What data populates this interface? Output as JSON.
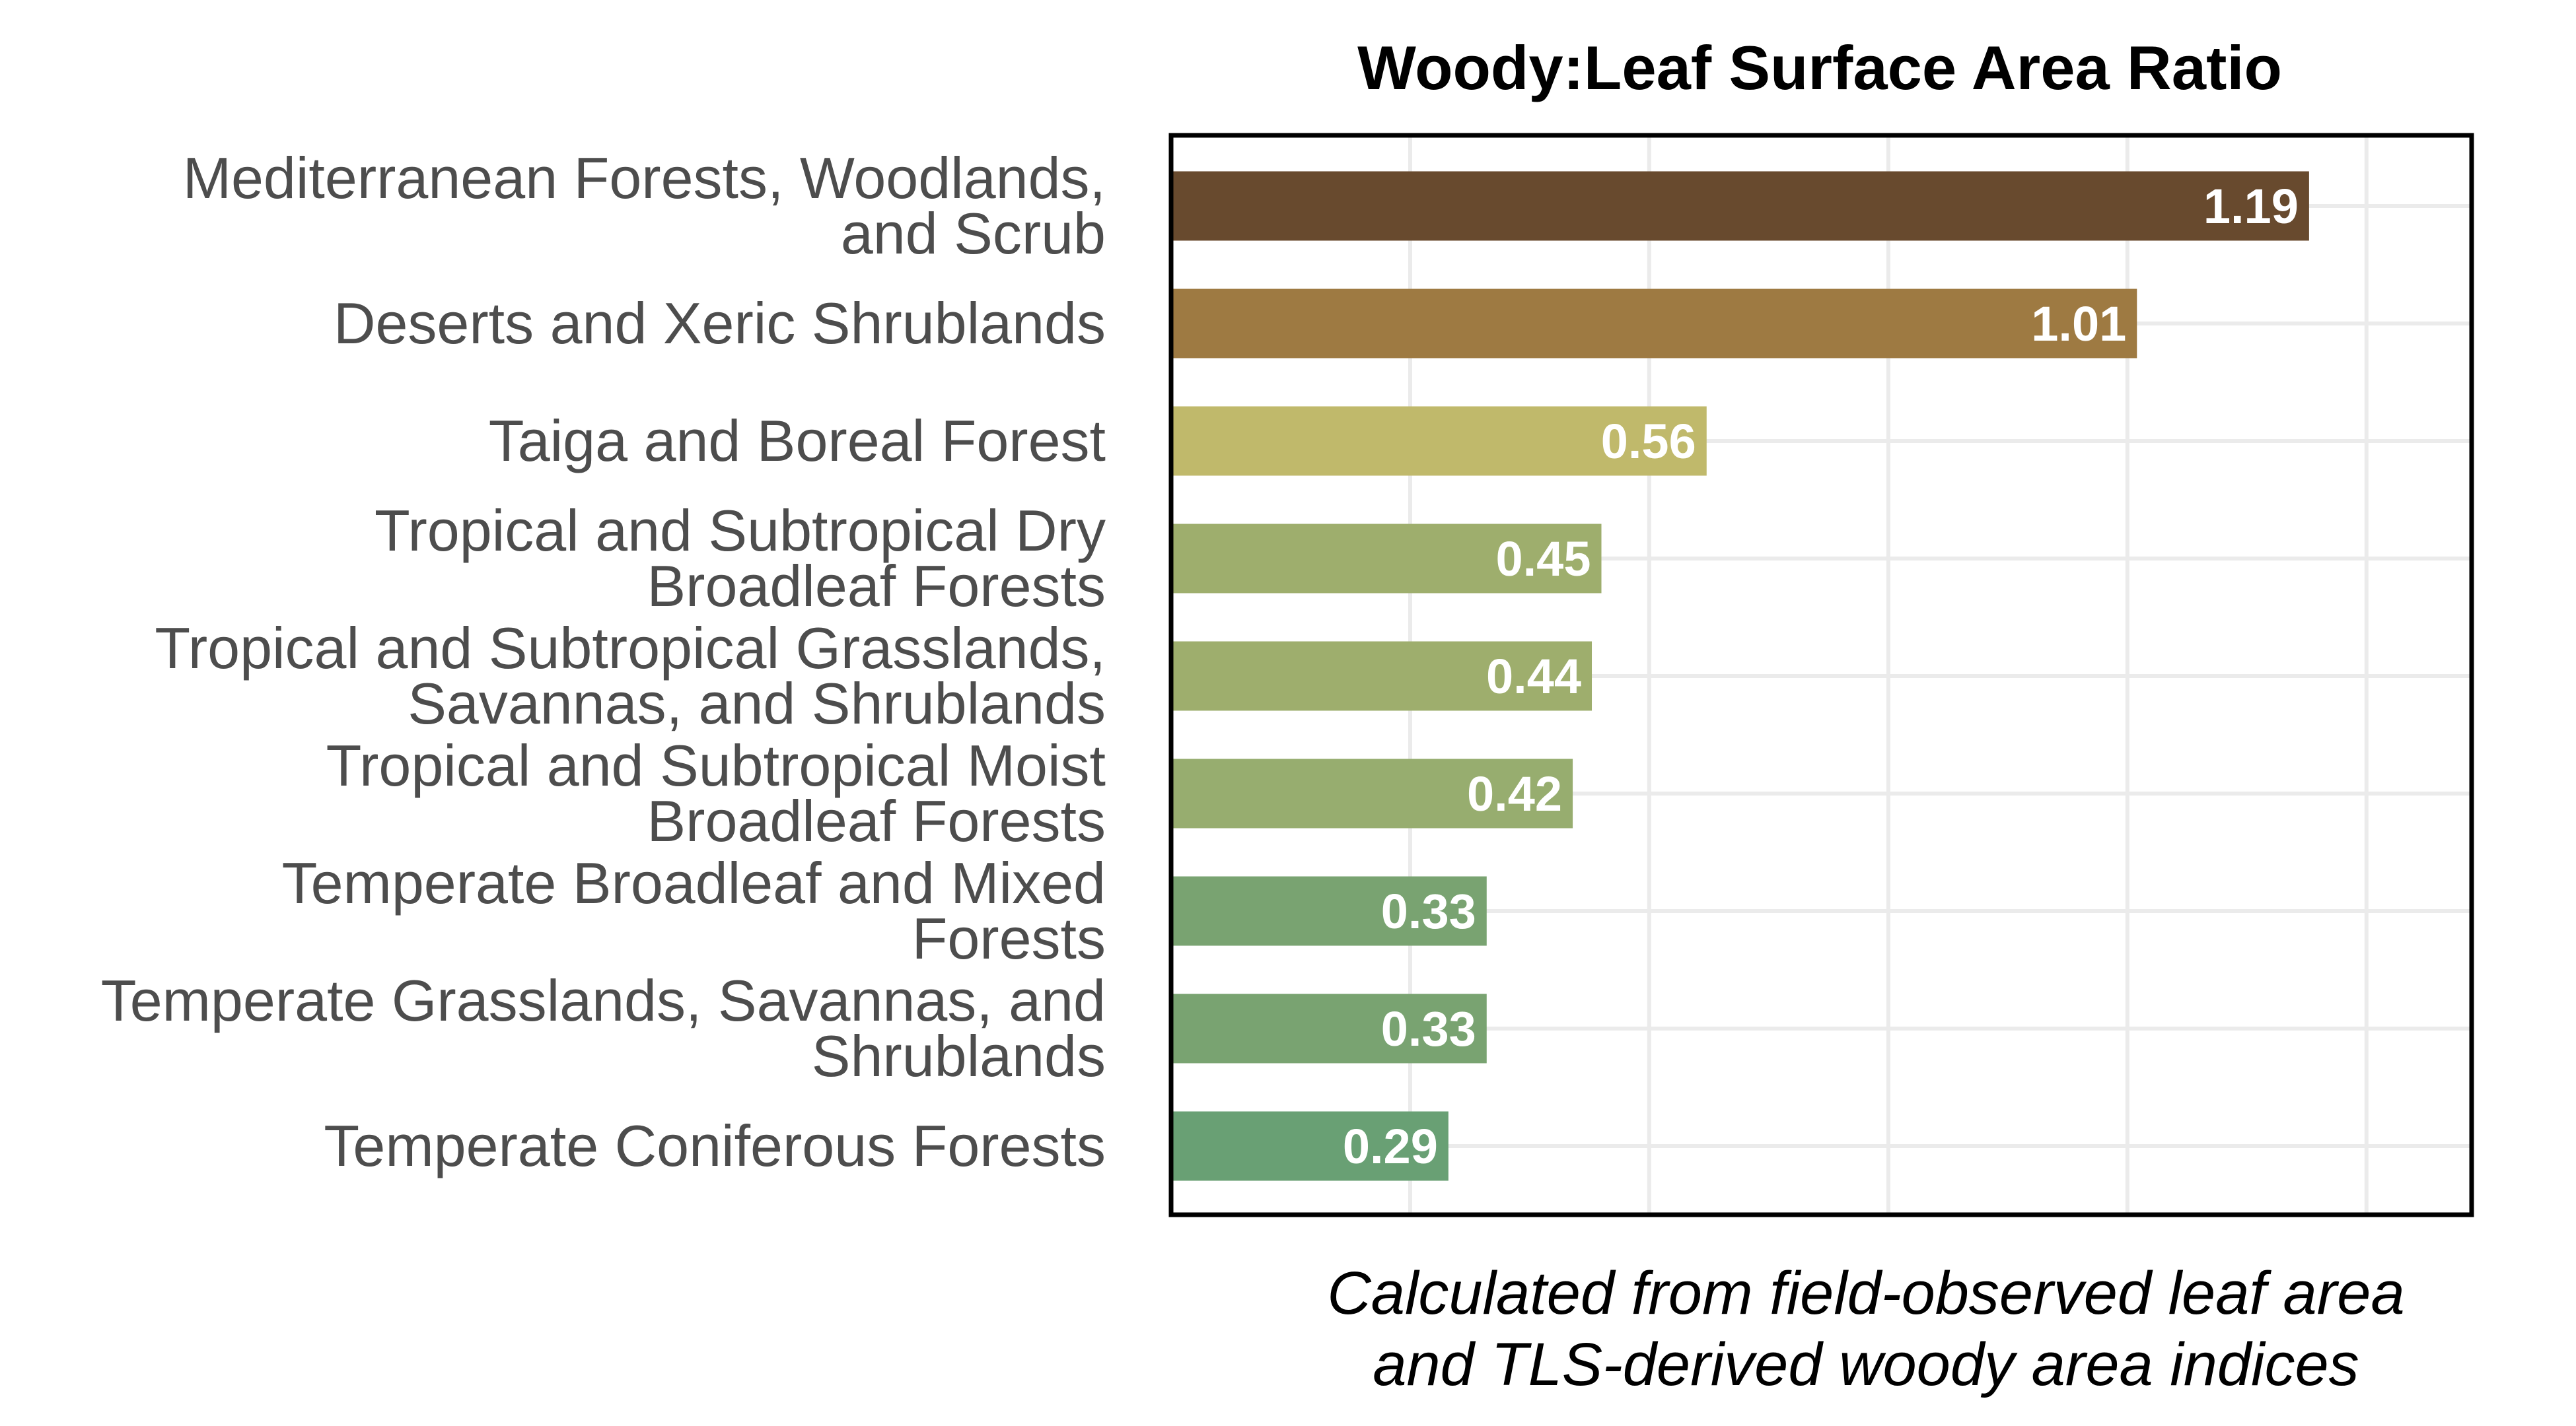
{
  "chart_data": {
    "type": "bar",
    "orientation": "horizontal",
    "title": "Woody:Leaf Surface Area Ratio",
    "xlabel": [
      "Calculated from field-observed leaf area",
      "and TLS-derived woody area indices"
    ],
    "ylabel": "",
    "xlim": [
      0,
      1.36
    ],
    "grid": true,
    "legend": "none",
    "categories": [
      [
        "Mediterranean Forests, Woodlands,",
        "and Scrub"
      ],
      [
        "Deserts and Xeric Shrublands"
      ],
      [
        "Taiga and Boreal Forest"
      ],
      [
        "Tropical and Subtropical Dry",
        "Broadleaf Forests"
      ],
      [
        "Tropical and Subtropical Grasslands,",
        "Savannas, and Shrublands"
      ],
      [
        "Tropical and Subtropical Moist",
        "Broadleaf Forests"
      ],
      [
        "Temperate Broadleaf and Mixed",
        "Forests"
      ],
      [
        "Temperate Grasslands, Savannas, and",
        "Shrublands"
      ],
      [
        "Temperate Coniferous Forests"
      ]
    ],
    "values": [
      1.19,
      1.01,
      0.56,
      0.45,
      0.44,
      0.42,
      0.33,
      0.33,
      0.29
    ],
    "labels": [
      "1.19",
      "1.01",
      "0.56",
      "0.45",
      "0.44",
      "0.42",
      "0.33",
      "0.33",
      "0.29"
    ],
    "colors": [
      "#684a2e",
      "#9e7a42",
      "#c0b96b",
      "#9eae6d",
      "#9eae6d",
      "#97ad6f",
      "#79a371",
      "#79a371",
      "#69a074"
    ]
  }
}
